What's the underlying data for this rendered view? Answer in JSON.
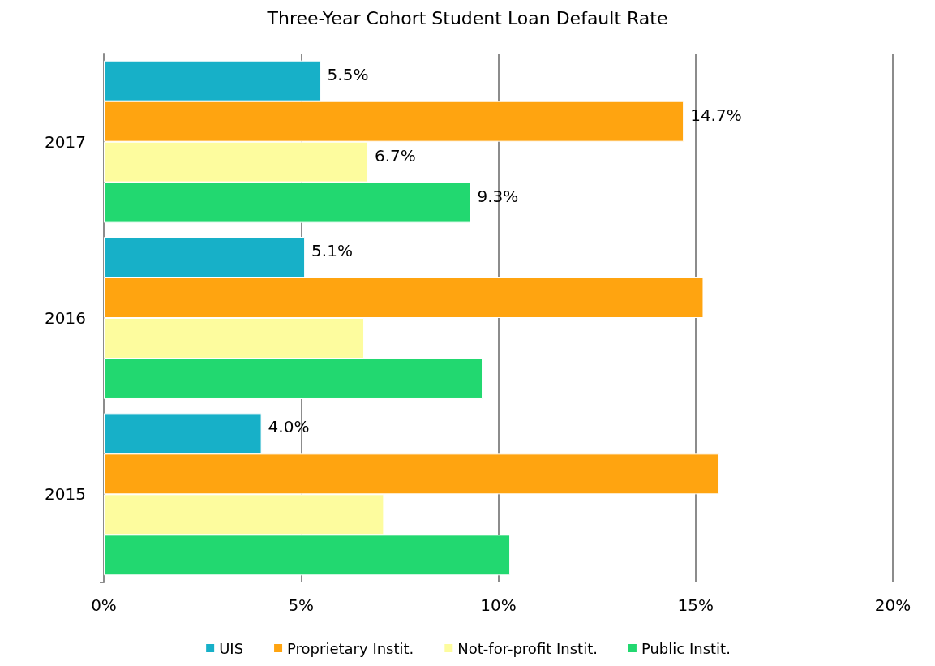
{
  "chart_data": {
    "type": "bar",
    "orientation": "horizontal",
    "title": "Three-Year Cohort Student Loan Default Rate",
    "categories": [
      "2017",
      "2016",
      "2015"
    ],
    "series": [
      {
        "name": "UIS",
        "color": "#17b0c8",
        "values": [
          5.5,
          5.1,
          4.0
        ],
        "value_labels": [
          "5.5%",
          "5.1%",
          "4.0%"
        ]
      },
      {
        "name": "Proprietary Instit.",
        "color": "#ffa410",
        "values": [
          14.7,
          15.2,
          15.6
        ],
        "value_labels": [
          "14.7%",
          null,
          null
        ]
      },
      {
        "name": "Not-for-profit Instit.",
        "color": "#fdfc9e",
        "values": [
          6.7,
          6.6,
          7.1
        ],
        "value_labels": [
          "6.7%",
          null,
          null
        ]
      },
      {
        "name": "Public Instit.",
        "color": "#22d870",
        "values": [
          9.3,
          9.6,
          10.3
        ],
        "value_labels": [
          "9.3%",
          null,
          null
        ]
      }
    ],
    "xlim": [
      0,
      20
    ],
    "xticks": [
      {
        "value": 0,
        "label": "0%"
      },
      {
        "value": 5,
        "label": "5%"
      },
      {
        "value": 10,
        "label": "10%"
      },
      {
        "value": 15,
        "label": "15%"
      },
      {
        "value": 20,
        "label": "20%"
      }
    ],
    "grid": "x",
    "legend": "bottom"
  }
}
